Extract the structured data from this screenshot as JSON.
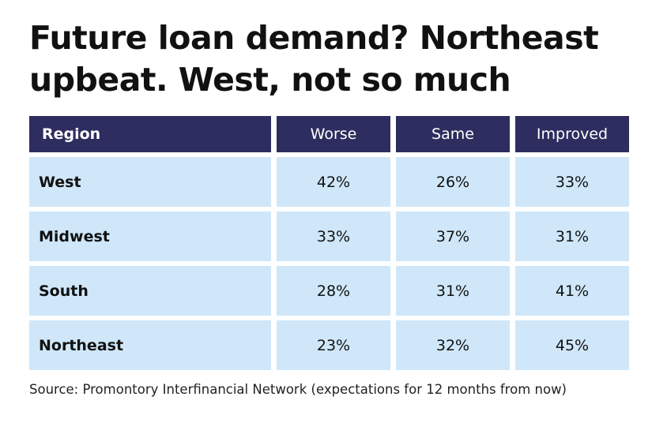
{
  "header": {
    "title": "Future loan demand? Northeast upbeat. West, not so much"
  },
  "table": {
    "columns": [
      "Region",
      "Worse",
      "Same",
      "Improved"
    ],
    "rows": [
      [
        "West",
        "42%",
        "26%",
        "33%"
      ],
      [
        "Midwest",
        "33%",
        "37%",
        "31%"
      ],
      [
        "South",
        "28%",
        "31%",
        "41%"
      ],
      [
        "Northeast",
        "23%",
        "32%",
        "45%"
      ]
    ]
  },
  "footer": {
    "source": "Source: Promontory Interfinancial Network (expectations for 12 months from now)"
  }
}
